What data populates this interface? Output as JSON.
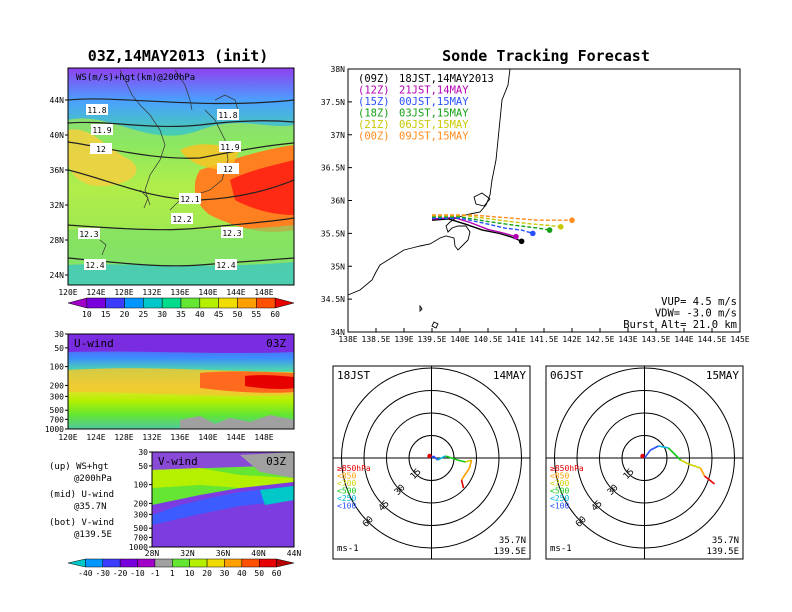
{
  "left_panel": {
    "title": "03Z,14MAY2013 (init)",
    "map_label": "WS(m/s)+hgt(km)@200hPa",
    "lat_ticks": [
      "44N",
      "40N",
      "36N",
      "32N",
      "28N",
      "24N"
    ],
    "lon_ticks": [
      "120E",
      "124E",
      "128E",
      "132E",
      "136E",
      "140E",
      "144E",
      "148E"
    ],
    "contour_labels": [
      "11.8",
      "11.8",
      "11.9",
      "11.9",
      "12",
      "12",
      "12.1",
      "12.2",
      "12.3",
      "12.3",
      "12.4",
      "12.4"
    ],
    "ws_colorbar": {
      "labels": [
        "10",
        "15",
        "20",
        "25",
        "30",
        "35",
        "40",
        "45",
        "50",
        "55",
        "60"
      ],
      "colors": [
        "#a000c8",
        "#7800dc",
        "#3c3cff",
        "#0096ff",
        "#00c8c8",
        "#00dc8c",
        "#64e632",
        "#b4f000",
        "#f0dc00",
        "#ffa000",
        "#ff5000",
        "#e60000"
      ]
    },
    "uwind": {
      "label": "U-wind",
      "time": "03Z",
      "p_ticks": [
        "30",
        "50",
        "100",
        "200",
        "300",
        "500",
        "700",
        "1000"
      ],
      "lon_ticks": [
        "120E",
        "124E",
        "128E",
        "132E",
        "136E",
        "140E",
        "144E",
        "148E"
      ]
    },
    "vwind": {
      "label": "V-wind",
      "time": "03Z",
      "p_ticks": [
        "30",
        "50",
        "100",
        "200",
        "300",
        "500",
        "700",
        "1000"
      ],
      "lat_ticks": [
        "28N",
        "32N",
        "36N",
        "40N",
        "44N"
      ]
    },
    "notes": [
      {
        "a": "(up) WS+hgt",
        "b": "@200hPa"
      },
      {
        "a": "(mid) U-wind",
        "b": "@35.7N"
      },
      {
        "a": "(bot) V-wind",
        "b": "@139.5E"
      }
    ],
    "wind_colorbar": {
      "labels": [
        "-40",
        "-30",
        "-20",
        "-10",
        "-1",
        "1",
        "10",
        "20",
        "30",
        "40",
        "50",
        "60"
      ],
      "colors": [
        "#00c8c8",
        "#0096ff",
        "#3c3cff",
        "#7800dc",
        "#a000c8",
        "#a0a0a0",
        "#64e632",
        "#b4f000",
        "#f0dc00",
        "#ffa000",
        "#ff5000",
        "#e60000",
        "#b40000"
      ]
    }
  },
  "chart_data": {
    "type": "line",
    "title": "Sonde Tracking Forecast",
    "x_ticks": [
      "138E",
      "138.5E",
      "139E",
      "139.5E",
      "140E",
      "140.5E",
      "141E",
      "141.5E",
      "142E",
      "142.5E",
      "143E",
      "143.5E",
      "144E",
      "144.5E",
      "145E"
    ],
    "y_ticks": [
      "38N",
      "37.5N",
      "37N",
      "36.5N",
      "36N",
      "35.5N",
      "35N",
      "34.5N",
      "34N"
    ],
    "xlim": [
      138,
      145
    ],
    "ylim": [
      34,
      38
    ],
    "legend": [
      {
        "code": "(09Z)",
        "text": "18JST,14MAY2013",
        "color": "#000000"
      },
      {
        "code": "(12Z)",
        "text": "21JST,14MAY",
        "color": "#b400b4"
      },
      {
        "code": "(15Z)",
        "text": "00JST,15MAY",
        "color": "#2850ff"
      },
      {
        "code": "(18Z)",
        "text": "03JST,15MAY",
        "color": "#14a014"
      },
      {
        "code": "(21Z)",
        "text": "06JST,15MAY",
        "color": "#c8c800"
      },
      {
        "code": "(00Z)",
        "text": "09JST,15MAY",
        "color": "#ff8c1e"
      }
    ],
    "series": [
      {
        "color": "#000000",
        "x": [
          139.5,
          139.8,
          140.1,
          140.4,
          140.7,
          140.9,
          141.1
        ],
        "y": [
          35.7,
          35.72,
          35.64,
          35.55,
          35.5,
          35.45,
          35.38
        ]
      },
      {
        "color": "#b400b4",
        "x": [
          139.5,
          139.9,
          140.2,
          140.5,
          140.8,
          141.0
        ],
        "y": [
          35.72,
          35.74,
          35.66,
          35.56,
          35.5,
          35.45
        ]
      },
      {
        "color": "#2850ff",
        "x": [
          139.5,
          140.0,
          140.4,
          140.8,
          141.1,
          141.3
        ],
        "y": [
          35.73,
          35.73,
          35.66,
          35.58,
          35.55,
          35.5
        ]
      },
      {
        "color": "#14a014",
        "x": [
          139.5,
          140.0,
          140.5,
          141.0,
          141.4,
          141.6
        ],
        "y": [
          35.75,
          35.75,
          35.68,
          35.62,
          35.58,
          35.55
        ]
      },
      {
        "color": "#c8c800",
        "x": [
          139.5,
          140.1,
          140.7,
          141.2,
          141.6,
          141.8
        ],
        "y": [
          35.77,
          35.77,
          35.7,
          35.65,
          35.62,
          35.6
        ]
      },
      {
        "color": "#ff8c1e",
        "x": [
          139.5,
          140.2,
          140.8,
          141.4,
          141.8,
          142.0
        ],
        "y": [
          35.78,
          35.78,
          35.74,
          35.7,
          35.7,
          35.7
        ]
      }
    ],
    "info": [
      "VUP= 4.5 m/s",
      "VDW= -3.0 m/s",
      "Burst Alt= 21.0 km"
    ]
  },
  "polar": [
    {
      "time": "18JST",
      "date": "14MAY",
      "rings": [
        "15",
        "30",
        "45",
        "60"
      ],
      "unit": "ms-1",
      "loc1": "35.7N",
      "loc2": "139.5E"
    },
    {
      "time": "06JST",
      "date": "15MAY",
      "rings": [
        "15",
        "30",
        "45",
        "60"
      ],
      "unit": "ms-1",
      "loc1": "35.7N",
      "loc2": "139.5E"
    }
  ],
  "polar_legend": [
    {
      "text": "≥850hPa",
      "color": "#e60000"
    },
    {
      "text": "<850",
      "color": "#ffa000"
    },
    {
      "text": "<700",
      "color": "#d0d000"
    },
    {
      "text": "<500",
      "color": "#14c814"
    },
    {
      "text": "<250",
      "color": "#00b4dc"
    },
    {
      "text": "<100",
      "color": "#2850ff"
    }
  ]
}
